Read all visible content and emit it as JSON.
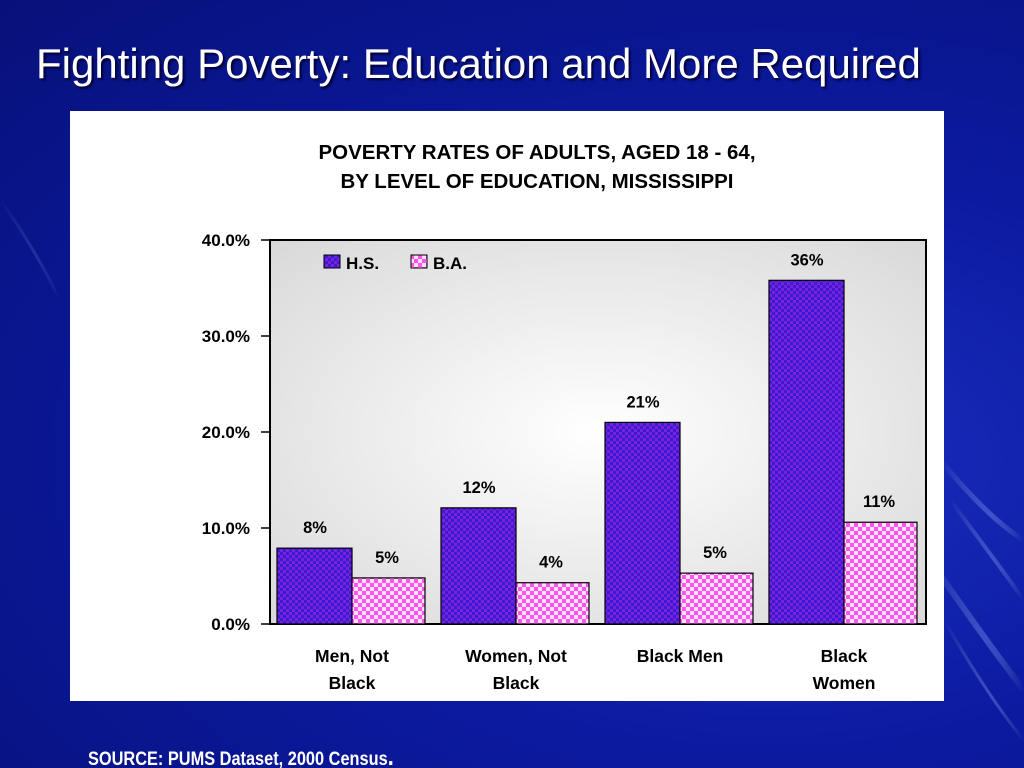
{
  "slide": {
    "title": "Fighting Poverty: Education and More Required",
    "source": "SOURCE: PUMS Dataset, 2000 Census",
    "source_punct": "."
  },
  "colors": {
    "hs": "#3a1ad6",
    "ba": "#ff55ee"
  },
  "chart_data": {
    "type": "bar",
    "title_lines": [
      "POVERTY RATES OF ADULTS, AGED 18 - 64,",
      "BY LEVEL OF EDUCATION, MISSISSIPPI"
    ],
    "categories": [
      [
        "Men, Not",
        "Black"
      ],
      [
        "Women, Not",
        "Black"
      ],
      [
        "Black Men"
      ],
      [
        "Black",
        "Women"
      ]
    ],
    "series": [
      {
        "name": "H.S.",
        "values": [
          7.9,
          12.1,
          21.0,
          35.8
        ],
        "labels": [
          "8%",
          "12%",
          "21%",
          "36%"
        ]
      },
      {
        "name": "B.A.",
        "values": [
          4.8,
          4.3,
          5.3,
          10.6
        ],
        "labels": [
          "5%",
          "4%",
          "5%",
          "11%"
        ]
      }
    ],
    "yticks": [
      0,
      10,
      20,
      30,
      40
    ],
    "ytick_labels": [
      "0.0%",
      "10.0%",
      "20.0%",
      "30.0%",
      "40.0%"
    ],
    "ylim": [
      0,
      40
    ],
    "xlabel": "",
    "ylabel": "",
    "legend_position": "top-left"
  }
}
